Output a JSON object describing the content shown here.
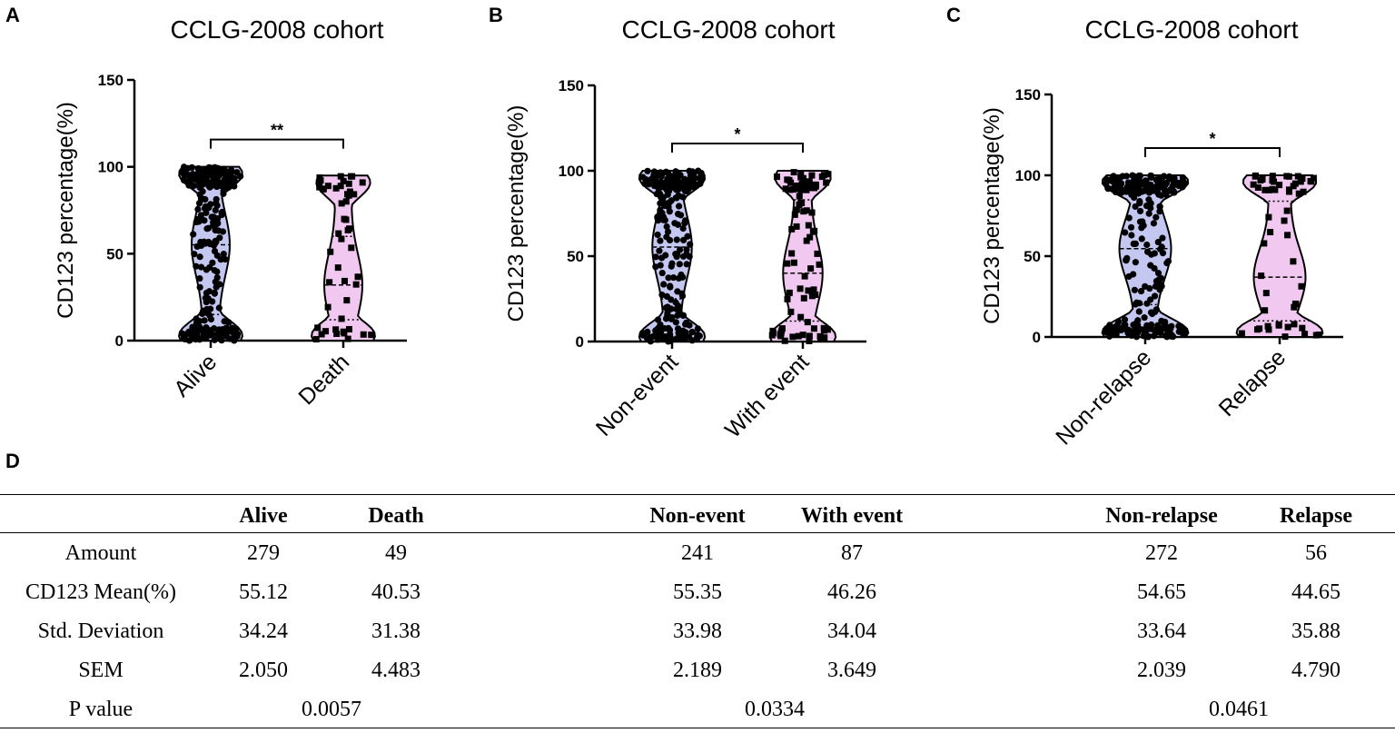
{
  "panels": [
    "A",
    "B",
    "C",
    "D"
  ],
  "chart_data": [
    {
      "type": "violin",
      "title": "CCLG-2008 cohort",
      "ylabel": "CD123 percentage(%)",
      "ylim": [
        0,
        150
      ],
      "yticks": [
        0,
        50,
        100,
        150
      ],
      "categories": [
        "Alive",
        "Death"
      ],
      "significance": "**",
      "colors": [
        "#c4c8f0",
        "#f0c8f0"
      ],
      "violins": [
        {
          "name": "Alive",
          "n": 279,
          "median": 55.12,
          "q1": 15,
          "q3": 92,
          "min": 0,
          "max": 100
        },
        {
          "name": "Death",
          "n": 49,
          "median": 32,
          "q1": 12,
          "q3": 60,
          "min": 0,
          "max": 95
        }
      ]
    },
    {
      "type": "violin",
      "title": "CCLG-2008 cohort",
      "ylabel": "CD123 percentage(%)",
      "ylim": [
        0,
        150
      ],
      "yticks": [
        0,
        50,
        100,
        150
      ],
      "categories": [
        "Non-event",
        "With event"
      ],
      "significance": "*",
      "colors": [
        "#c4c8f0",
        "#f0c8f0"
      ],
      "violins": [
        {
          "name": "Non-event",
          "n": 241,
          "median": 55.35,
          "q1": 25,
          "q3": 92,
          "min": 0,
          "max": 100
        },
        {
          "name": "With event",
          "n": 87,
          "median": 40,
          "q1": 12,
          "q3": 83,
          "min": 0,
          "max": 100
        }
      ]
    },
    {
      "type": "violin",
      "title": "CCLG-2008 cohort",
      "ylabel": "CD123 percentage(%)",
      "ylim": [
        0,
        150
      ],
      "yticks": [
        0,
        50,
        100,
        150
      ],
      "categories": [
        "Non-relapse",
        "Relapse"
      ],
      "significance": "*",
      "colors": [
        "#c4c8f0",
        "#f0c8f0"
      ],
      "violins": [
        {
          "name": "Non-relapse",
          "n": 272,
          "median": 54.65,
          "q1": 20,
          "q3": 90,
          "min": 0,
          "max": 100
        },
        {
          "name": "Relapse",
          "n": 56,
          "median": 37,
          "q1": 10,
          "q3": 84,
          "min": 0,
          "max": 100
        }
      ]
    }
  ],
  "table": {
    "headers": [
      "Alive",
      "Death",
      "Non-event",
      "With event",
      "Non-relapse",
      "Relapse"
    ],
    "rows": [
      {
        "label": "Amount",
        "values": [
          "279",
          "49",
          "241",
          "87",
          "272",
          "56"
        ]
      },
      {
        "label": "CD123 Mean(%)",
        "values": [
          "55.12",
          "40.53",
          "55.35",
          "46.26",
          "54.65",
          "44.65"
        ]
      },
      {
        "label": "Std. Deviation",
        "values": [
          "34.24",
          "31.38",
          "33.98",
          "34.04",
          "33.64",
          "35.88"
        ]
      },
      {
        "label": "SEM",
        "values": [
          "2.050",
          "4.483",
          "2.189",
          "3.649",
          "2.039",
          "4.790"
        ]
      }
    ],
    "pvalue": {
      "label": "P value",
      "values": [
        "0.0057",
        "0.0334",
        "0.0461"
      ]
    }
  }
}
